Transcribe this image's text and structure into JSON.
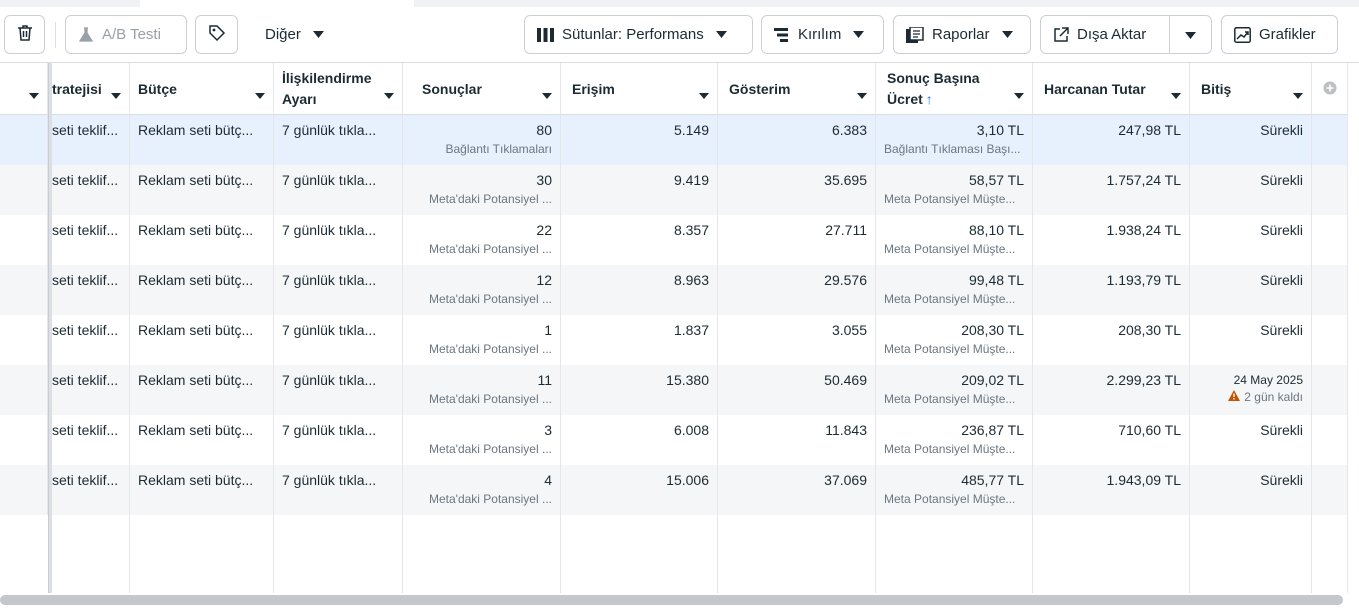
{
  "toolbar": {
    "ab_test": "A/B Testi",
    "more": "Diğer",
    "columns": "Sütunlar: Performans",
    "breakdown": "Kırılım",
    "reports": "Raporlar",
    "export": "Dışa Aktar",
    "charts": "Grafikler"
  },
  "columns": {
    "strategy": "tratejisi",
    "budget": "Bütçe",
    "attribution": "İlişkilendirme Ayarı",
    "results": "Sonuçlar",
    "reach": "Erişim",
    "impressions": "Gösterim",
    "cost_per_result": "Sonuç Başına Ücret",
    "amount_spent": "Harcanan Tutar",
    "ends": "Bitiş"
  },
  "rows": [
    {
      "strategy": "seti teklif...",
      "budget": "Reklam seti bütç...",
      "attribution": "7 günlük tıkla...",
      "results": "80",
      "results_sub": "Bağlantı Tıklamaları",
      "reach": "5.149",
      "impressions": "6.383",
      "cpr": "3,10 TL",
      "cpr_sub": "Bağlantı Tıklaması Başı...",
      "spent": "247,98 TL",
      "ends": "Sürekli"
    },
    {
      "strategy": "seti teklif...",
      "budget": "Reklam seti bütç...",
      "attribution": "7 günlük tıkla...",
      "results": "30",
      "results_sub": "Meta'daki Potansiyel ...",
      "reach": "9.419",
      "impressions": "35.695",
      "cpr": "58,57 TL",
      "cpr_sub": "Meta Potansiyel Müşte...",
      "spent": "1.757,24 TL",
      "ends": "Sürekli"
    },
    {
      "strategy": "seti teklif...",
      "budget": "Reklam seti bütç...",
      "attribution": "7 günlük tıkla...",
      "results": "22",
      "results_sub": "Meta'daki Potansiyel ...",
      "reach": "8.357",
      "impressions": "27.711",
      "cpr": "88,10 TL",
      "cpr_sub": "Meta Potansiyel Müşte...",
      "spent": "1.938,24 TL",
      "ends": "Sürekli"
    },
    {
      "strategy": "seti teklif...",
      "budget": "Reklam seti bütç...",
      "attribution": "7 günlük tıkla...",
      "results": "12",
      "results_sub": "Meta'daki Potansiyel ...",
      "reach": "8.963",
      "impressions": "29.576",
      "cpr": "99,48 TL",
      "cpr_sub": "Meta Potansiyel Müşte...",
      "spent": "1.193,79 TL",
      "ends": "Sürekli"
    },
    {
      "strategy": "seti teklif...",
      "budget": "Reklam seti bütç...",
      "attribution": "7 günlük tıkla...",
      "results": "1",
      "results_sub": "Meta'daki Potansiyel ...",
      "reach": "1.837",
      "impressions": "3.055",
      "cpr": "208,30 TL",
      "cpr_sub": "Meta Potansiyel Müşte...",
      "spent": "208,30 TL",
      "ends": "Sürekli"
    },
    {
      "strategy": "seti teklif...",
      "budget": "Reklam seti bütç...",
      "attribution": "7 günlük tıkla...",
      "results": "11",
      "results_sub": "Meta'daki Potansiyel ...",
      "reach": "15.380",
      "impressions": "50.469",
      "cpr": "209,02 TL",
      "cpr_sub": "Meta Potansiyel Müşte...",
      "spent": "2.299,23 TL",
      "ends_date": "24 May 2025",
      "ends_warning": "2 gün kaldı"
    },
    {
      "strategy": "seti teklif...",
      "budget": "Reklam seti bütç...",
      "attribution": "7 günlük tıkla...",
      "results": "3",
      "results_sub": "Meta'daki Potansiyel ...",
      "reach": "6.008",
      "impressions": "11.843",
      "cpr": "236,87 TL",
      "cpr_sub": "Meta Potansiyel Müşte...",
      "spent": "710,60 TL",
      "ends": "Sürekli"
    },
    {
      "strategy": "seti teklif...",
      "budget": "Reklam seti bütç...",
      "attribution": "7 günlük tıkla...",
      "results": "4",
      "results_sub": "Meta'daki Potansiyel ...",
      "reach": "15.006",
      "impressions": "37.069",
      "cpr": "485,77 TL",
      "cpr_sub": "Meta Potansiyel Müşte...",
      "spent": "1.943,09 TL",
      "ends": "Sürekli"
    }
  ]
}
